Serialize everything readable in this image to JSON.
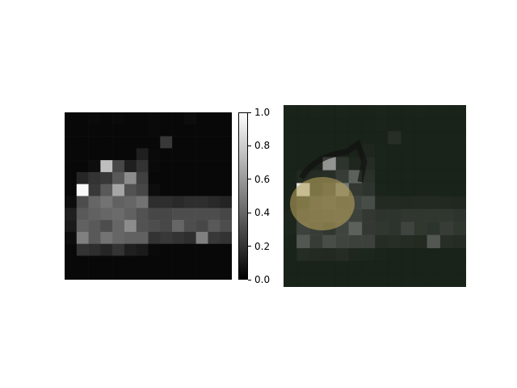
{
  "chart_data": [
    {
      "type": "heatmap",
      "title": "",
      "xlabel": "",
      "ylabel": "",
      "grid": false,
      "colormap": "gray",
      "vmin": 0.0,
      "vmax": 1.0,
      "rows": 14,
      "cols": 14,
      "values": [
        [
          0.03,
          0.03,
          0.04,
          0.03,
          0.04,
          0.03,
          0.03,
          0.04,
          0.03,
          0.03,
          0.05,
          0.03,
          0.03,
          0.03
        ],
        [
          0.03,
          0.03,
          0.03,
          0.03,
          0.03,
          0.03,
          0.03,
          0.04,
          0.03,
          0.03,
          0.03,
          0.03,
          0.03,
          0.03
        ],
        [
          0.03,
          0.03,
          0.03,
          0.03,
          0.03,
          0.03,
          0.03,
          0.03,
          0.22,
          0.03,
          0.03,
          0.03,
          0.03,
          0.03
        ],
        [
          0.03,
          0.03,
          0.03,
          0.03,
          0.03,
          0.03,
          0.12,
          0.04,
          0.03,
          0.03,
          0.03,
          0.03,
          0.03,
          0.03
        ],
        [
          0.03,
          0.03,
          0.05,
          0.75,
          0.28,
          0.12,
          0.2,
          0.04,
          0.03,
          0.03,
          0.03,
          0.03,
          0.03,
          0.03
        ],
        [
          0.03,
          0.15,
          0.2,
          0.22,
          0.35,
          0.55,
          0.25,
          0.03,
          0.03,
          0.03,
          0.03,
          0.03,
          0.03,
          0.03
        ],
        [
          0.03,
          0.98,
          0.22,
          0.35,
          0.65,
          0.32,
          0.28,
          0.05,
          0.03,
          0.03,
          0.03,
          0.03,
          0.03,
          0.03
        ],
        [
          0.05,
          0.3,
          0.4,
          0.45,
          0.38,
          0.4,
          0.45,
          0.18,
          0.18,
          0.16,
          0.18,
          0.18,
          0.16,
          0.14
        ],
        [
          0.12,
          0.35,
          0.38,
          0.4,
          0.42,
          0.38,
          0.32,
          0.28,
          0.28,
          0.3,
          0.3,
          0.3,
          0.3,
          0.28
        ],
        [
          0.1,
          0.38,
          0.35,
          0.3,
          0.4,
          0.55,
          0.32,
          0.3,
          0.28,
          0.4,
          0.3,
          0.28,
          0.35,
          0.3
        ],
        [
          0.05,
          0.5,
          0.35,
          0.45,
          0.4,
          0.38,
          0.38,
          0.2,
          0.22,
          0.2,
          0.18,
          0.5,
          0.22,
          0.2
        ],
        [
          0.03,
          0.2,
          0.18,
          0.15,
          0.2,
          0.12,
          0.1,
          0.04,
          0.03,
          0.03,
          0.03,
          0.03,
          0.03,
          0.03
        ],
        [
          0.03,
          0.03,
          0.03,
          0.03,
          0.03,
          0.03,
          0.03,
          0.03,
          0.03,
          0.03,
          0.03,
          0.03,
          0.03,
          0.03
        ],
        [
          0.03,
          0.03,
          0.03,
          0.03,
          0.03,
          0.03,
          0.03,
          0.03,
          0.03,
          0.03,
          0.03,
          0.03,
          0.03,
          0.03
        ]
      ],
      "colorbar": {
        "ticks": [
          0.0,
          0.2,
          0.4,
          0.6,
          0.8,
          1.0
        ],
        "tick_labels": [
          "0.0",
          "0.2",
          "0.4",
          "0.6",
          "0.8",
          "1.0"
        ]
      }
    },
    {
      "type": "heatmap",
      "title": "",
      "description_role": "attribution map overlaid on photo",
      "background_color": "#1f2a1e",
      "highlight_color": "#b5a25c",
      "grid": false
    }
  ]
}
